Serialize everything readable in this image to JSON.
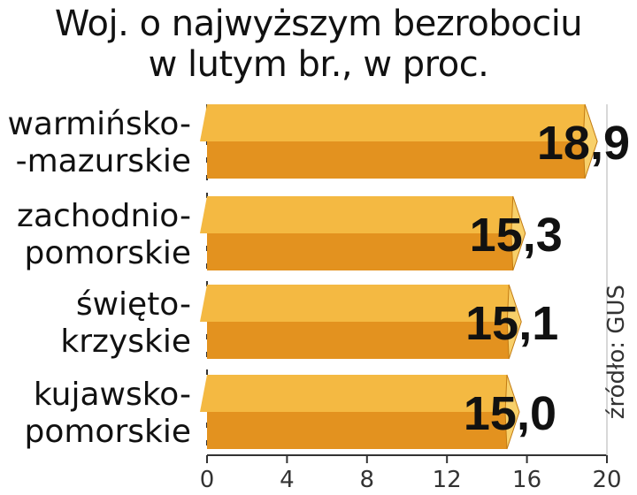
{
  "title_lines": [
    "Woj. o najwyższym bezrobociu",
    "w lutym br., w proc."
  ],
  "source": "źródło: GUS",
  "colors": {
    "bar_light": "#f4b942",
    "bar_dark": "#e3921f",
    "bar_edge": "#c27a12",
    "text": "#111111",
    "axis": "#333333"
  },
  "chart_data": {
    "type": "bar",
    "orientation": "horizontal",
    "title": "Woj. o najwyższym bezrobociu w lutym br., w proc.",
    "categories": [
      [
        "warmińsko-",
        "-mazurskie"
      ],
      [
        "zachodnio-",
        "pomorskie"
      ],
      [
        "święto-",
        "krzyskie"
      ],
      [
        "kujawsko-",
        "pomorskie"
      ]
    ],
    "values": [
      18.9,
      15.3,
      15.1,
      15.0
    ],
    "value_labels": [
      "18,9",
      "15,3",
      "15,1",
      "15,0"
    ],
    "xlim": [
      0,
      20
    ],
    "ticks": [
      0,
      4,
      8,
      12,
      16,
      20
    ],
    "tick_labels": [
      "0",
      "4",
      "8",
      "12",
      "16",
      "20"
    ],
    "grid": false,
    "legend": "none"
  }
}
